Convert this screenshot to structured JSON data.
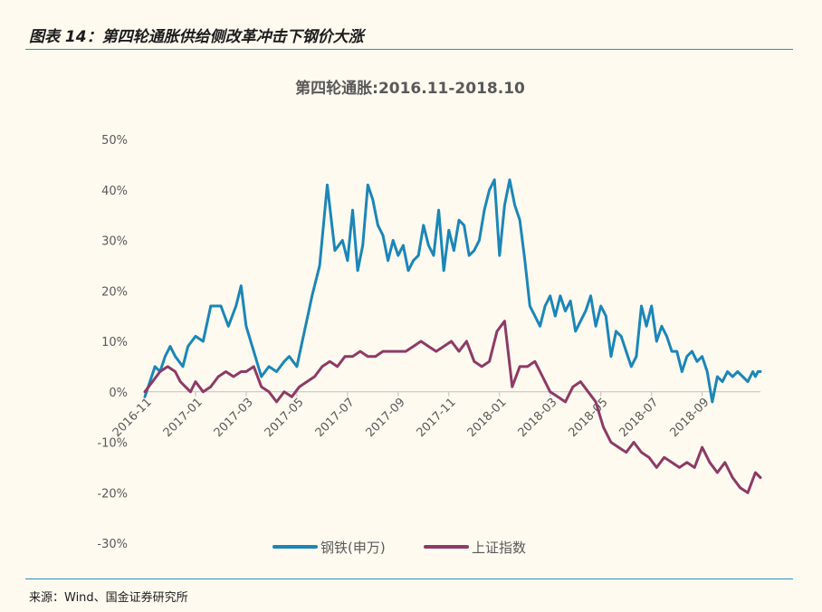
{
  "figure": {
    "title": "图表 14：第四轮通胀供给侧改革冲击下钢价大涨",
    "source": "来源：Wind、国金证券研究所"
  },
  "chart_data": {
    "type": "line",
    "title": "第四轮通胀:2016.11-2018.10",
    "xlabel": "",
    "ylabel": "",
    "ylim": [
      -30,
      50
    ],
    "y_ticks": [
      "50%",
      "40%",
      "30%",
      "20%",
      "10%",
      "0%",
      "-10%",
      "-20%",
      "-30%"
    ],
    "y_tick_values": [
      50,
      40,
      30,
      20,
      10,
      0,
      -10,
      -20,
      -30
    ],
    "x_ticks": [
      "2016-11",
      "2017-01",
      "2017-03",
      "2017-05",
      "2017-07",
      "2017-09",
      "2017-11",
      "2018-01",
      "2018-03",
      "2018-05",
      "2018-07",
      "2018-09"
    ],
    "x_tick_positions": [
      0,
      2,
      4,
      6,
      8,
      10,
      12,
      14,
      16,
      18,
      20,
      22
    ],
    "x_range": [
      0,
      24.3
    ],
    "grid": false,
    "legend_position": "bottom",
    "x_unit": "months since 2016-11",
    "series": [
      {
        "name": "钢铁(申万)",
        "color": "#1b86b8",
        "x": [
          0,
          0.2,
          0.4,
          0.6,
          0.8,
          1.0,
          1.2,
          1.5,
          1.7,
          2.0,
          2.3,
          2.6,
          3.0,
          3.3,
          3.6,
          3.8,
          4.0,
          4.3,
          4.6,
          4.9,
          5.2,
          5.5,
          5.7,
          6.0,
          6.3,
          6.6,
          6.9,
          7.2,
          7.5,
          7.8,
          8.0,
          8.2,
          8.4,
          8.6,
          8.8,
          9.0,
          9.2,
          9.4,
          9.6,
          9.8,
          10.0,
          10.2,
          10.4,
          10.6,
          10.8,
          11.0,
          11.2,
          11.4,
          11.6,
          11.8,
          12.0,
          12.2,
          12.4,
          12.6,
          12.8,
          13.0,
          13.2,
          13.4,
          13.6,
          13.8,
          14.0,
          14.2,
          14.4,
          14.6,
          14.8,
          15.0,
          15.2,
          15.4,
          15.6,
          15.8,
          16.0,
          16.2,
          16.4,
          16.6,
          16.8,
          17.0,
          17.2,
          17.4,
          17.6,
          17.8,
          18.0,
          18.2,
          18.4,
          18.6,
          18.8,
          19.0,
          19.2,
          19.4,
          19.6,
          19.8,
          20.0,
          20.2,
          20.4,
          20.6,
          20.8,
          21.0,
          21.2,
          21.4,
          21.6,
          21.8,
          22.0,
          22.2,
          22.4,
          22.6,
          22.8,
          23.0,
          23.2,
          23.4,
          23.6,
          23.8,
          24.0,
          24.1,
          24.2,
          24.3
        ],
        "values": [
          -1,
          2,
          5,
          4,
          7,
          9,
          7,
          5,
          9,
          11,
          10,
          17,
          17,
          13,
          17,
          21,
          13,
          8,
          3,
          5,
          4,
          6,
          7,
          5,
          12,
          19,
          25,
          41,
          28,
          30,
          26,
          36,
          24,
          29,
          41,
          38,
          33,
          31,
          26,
          30,
          27,
          29,
          24,
          26,
          27,
          33,
          29,
          27,
          36,
          24,
          32,
          28,
          34,
          33,
          27,
          28,
          30,
          36,
          40,
          42,
          27,
          37,
          42,
          37,
          34,
          26,
          17,
          15,
          13,
          17,
          19,
          15,
          19,
          16,
          18,
          12,
          14,
          16,
          19,
          13,
          17,
          15,
          7,
          12,
          11,
          8,
          5,
          7,
          17,
          13,
          17,
          10,
          13,
          11,
          8,
          8,
          4,
          7,
          8,
          6,
          7,
          4,
          -2,
          3,
          2,
          4,
          3,
          4,
          3,
          2,
          4,
          3,
          4,
          4
        ]
      },
      {
        "name": "上证指数",
        "color": "#8d3a66",
        "x": [
          0,
          0.3,
          0.6,
          0.9,
          1.2,
          1.4,
          1.6,
          1.8,
          2.0,
          2.3,
          2.6,
          2.9,
          3.2,
          3.5,
          3.8,
          4.0,
          4.3,
          4.6,
          4.9,
          5.2,
          5.5,
          5.8,
          6.1,
          6.4,
          6.7,
          7.0,
          7.3,
          7.6,
          7.9,
          8.2,
          8.5,
          8.8,
          9.1,
          9.4,
          9.7,
          10.0,
          10.3,
          10.6,
          10.9,
          11.2,
          11.5,
          11.8,
          12.1,
          12.4,
          12.7,
          13.0,
          13.3,
          13.6,
          13.9,
          14.2,
          14.5,
          14.8,
          15.1,
          15.4,
          15.7,
          16.0,
          16.3,
          16.6,
          16.9,
          17.2,
          17.5,
          17.8,
          18.1,
          18.4,
          18.7,
          19.0,
          19.3,
          19.6,
          19.9,
          20.2,
          20.5,
          20.8,
          21.1,
          21.4,
          21.7,
          22.0,
          22.3,
          22.6,
          22.9,
          23.2,
          23.5,
          23.8,
          24.1,
          24.3
        ],
        "values": [
          0,
          2,
          4,
          5,
          4,
          2,
          1,
          0,
          2,
          0,
          1,
          3,
          4,
          3,
          4,
          4,
          5,
          1,
          0,
          -2,
          0,
          -1,
          1,
          2,
          3,
          5,
          6,
          5,
          7,
          7,
          8,
          7,
          7,
          8,
          8,
          8,
          8,
          9,
          10,
          9,
          8,
          9,
          10,
          8,
          10,
          6,
          5,
          6,
          12,
          14,
          1,
          5,
          5,
          6,
          3,
          0,
          -1,
          -2,
          1,
          2,
          0,
          -2,
          -7,
          -10,
          -11,
          -12,
          -10,
          -12,
          -13,
          -15,
          -13,
          -14,
          -15,
          -14,
          -15,
          -11,
          -14,
          -16,
          -14,
          -17,
          -19,
          -20,
          -16,
          -17
        ]
      }
    ]
  }
}
